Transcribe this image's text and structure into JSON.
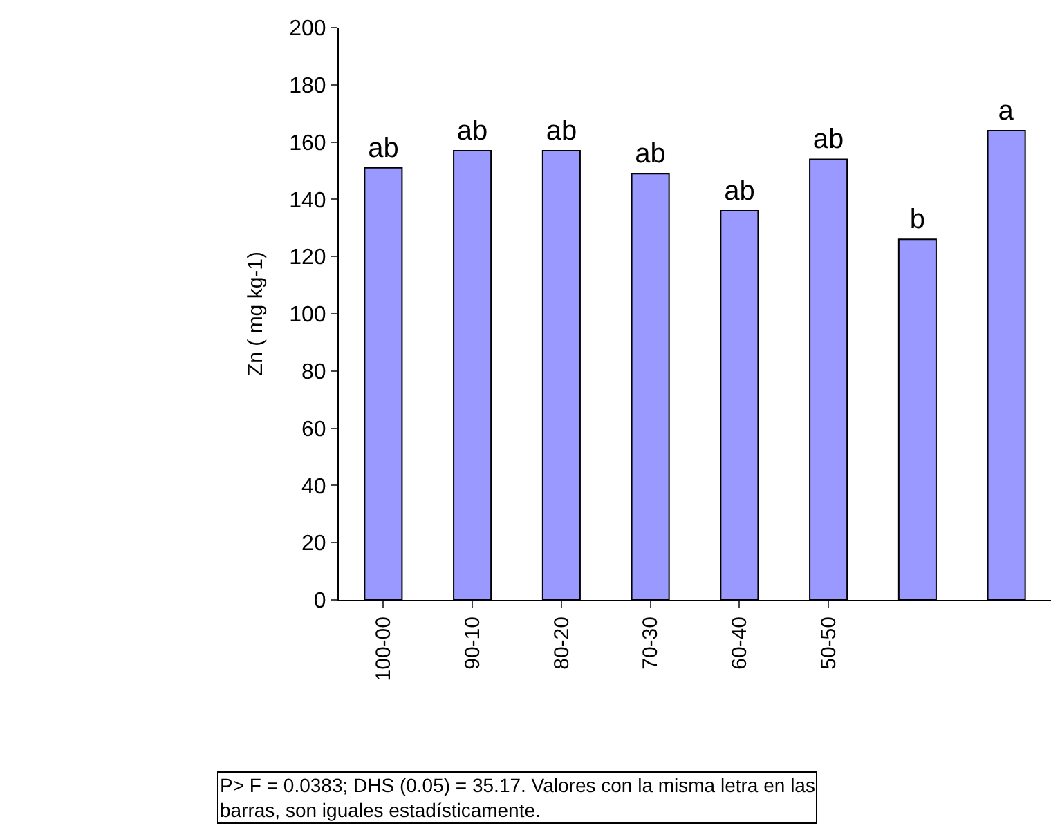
{
  "chart_data": {
    "type": "bar",
    "ylabel": "Zn ( mg kg-1)",
    "categories": [
      "100-00",
      "90-10",
      "80-20",
      "70-30",
      "60-40",
      "50-50",
      null,
      null
    ],
    "values": [
      151,
      157,
      157,
      149,
      136,
      154,
      126,
      164
    ],
    "value_labels": [
      "ab",
      "ab",
      "ab",
      "ab",
      "ab",
      "ab",
      "b",
      "a"
    ],
    "color": "#9999ff",
    "ylim": [
      0,
      200
    ],
    "yticks": [
      0,
      20,
      40,
      60,
      80,
      100,
      120,
      140,
      160,
      180,
      200
    ],
    "grid": false,
    "legend": false,
    "annotations": [
      "P> F = 0.0383; DHS (0.05) = 35.17. Valores con la misma letra en las barras, son iguales estadísticamente."
    ]
  }
}
